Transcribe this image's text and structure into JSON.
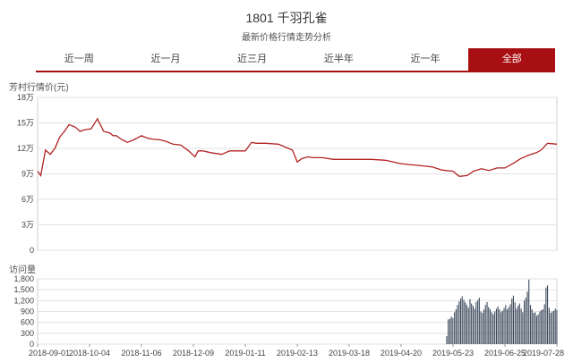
{
  "header": {
    "title": "1801 千羽孔雀",
    "subtitle": "最新价格行情走势分析"
  },
  "tabs": [
    {
      "label": "近一周",
      "active": false
    },
    {
      "label": "近一月",
      "active": false
    },
    {
      "label": "近三月",
      "active": false
    },
    {
      "label": "近半年",
      "active": false
    },
    {
      "label": "近一年",
      "active": false
    },
    {
      "label": "全部",
      "active": true
    }
  ],
  "colors": {
    "accent": "#a80f12",
    "price_line": "#b22222",
    "volume_bar": "#3d4a5c"
  },
  "chart_data": [
    {
      "type": "line",
      "ylabel": "芳村行情价(元)",
      "ylim": [
        0,
        180000
      ],
      "y_ticks": [
        0,
        30000,
        60000,
        90000,
        120000,
        150000,
        180000
      ],
      "y_tick_labels": [
        "0",
        "3万",
        "6万",
        "9万",
        "12万",
        "15万",
        "18万"
      ],
      "xlim": [
        "2018-09-01",
        "2019-07-28"
      ],
      "grid": true,
      "series": [
        {
          "x": [
            "2018-09-01",
            "2018-09-03",
            "2018-09-06",
            "2018-09-09",
            "2018-09-12",
            "2018-09-15",
            "2018-09-18",
            "2018-09-21",
            "2018-09-25",
            "2018-09-28",
            "2018-10-01",
            "2018-10-05",
            "2018-10-09",
            "2018-10-13",
            "2018-10-17",
            "2018-10-19",
            "2018-10-21",
            "2018-10-24",
            "2018-10-28",
            "2018-11-01",
            "2018-11-06",
            "2018-11-10",
            "2018-11-13",
            "2018-11-18",
            "2018-11-22",
            "2018-11-26",
            "2018-12-01",
            "2018-12-06",
            "2018-12-10",
            "2018-12-12",
            "2018-12-15",
            "2018-12-20",
            "2018-12-27",
            "2019-01-01",
            "2019-01-04",
            "2019-01-07",
            "2019-01-11",
            "2019-01-15",
            "2019-01-18",
            "2019-01-20",
            "2019-01-24",
            "2019-02-01",
            "2019-02-10",
            "2019-02-13",
            "2019-02-16",
            "2019-02-20",
            "2019-02-23",
            "2019-03-01",
            "2019-03-08",
            "2019-03-18",
            "2019-03-25",
            "2019-04-01",
            "2019-04-10",
            "2019-04-20",
            "2019-04-25",
            "2019-05-01",
            "2019-05-10",
            "2019-05-15",
            "2019-05-18",
            "2019-05-23",
            "2019-05-27",
            "2019-06-01",
            "2019-06-05",
            "2019-06-10",
            "2019-06-15",
            "2019-06-20",
            "2019-06-25",
            "2019-06-30",
            "2019-07-05",
            "2019-07-10",
            "2019-07-15",
            "2019-07-18",
            "2019-07-22",
            "2019-07-28"
          ],
          "y": [
            93000,
            88000,
            118000,
            113000,
            120000,
            133000,
            140000,
            148000,
            145000,
            140000,
            142000,
            143000,
            155000,
            140000,
            138000,
            135000,
            135000,
            131000,
            127000,
            130000,
            135000,
            132000,
            131000,
            130000,
            128000,
            125000,
            124000,
            117000,
            110000,
            117000,
            117000,
            115000,
            113000,
            117000,
            117000,
            117000,
            117000,
            127000,
            126000,
            126000,
            126000,
            125000,
            118000,
            104000,
            108000,
            110000,
            109000,
            109000,
            107000,
            107000,
            107000,
            107000,
            106000,
            102000,
            101000,
            100000,
            98000,
            95000,
            94000,
            93000,
            87000,
            88000,
            93000,
            96000,
            94000,
            97000,
            97000,
            102000,
            108000,
            112000,
            115000,
            118000,
            126000,
            125000
          ]
        }
      ]
    },
    {
      "type": "bar",
      "ylabel": "访问量",
      "ylim": [
        0,
        1800
      ],
      "y_ticks": [
        0,
        300,
        600,
        900,
        1200,
        1500,
        1800
      ],
      "y_tick_labels": [
        "0",
        "300",
        "600",
        "900",
        "1,200",
        "1,500",
        "1,800"
      ],
      "x_tick_labels": [
        "2018-09-01",
        "2018-10-04",
        "2018-11-06",
        "2018-12-09",
        "2019-01-11",
        "2019-02-13",
        "2019-03-18",
        "2019-04-20",
        "2019-05-23",
        "2019-06-25",
        "2019-07-28"
      ],
      "x_start": "2019-05-19",
      "x_end": "2019-07-28",
      "values": [
        220,
        680,
        700,
        760,
        720,
        880,
        960,
        1080,
        1180,
        1260,
        1320,
        1220,
        1150,
        1080,
        1000,
        1240,
        1120,
        1060,
        980,
        1160,
        1220,
        1280,
        900,
        860,
        960,
        1080,
        1160,
        1020,
        960,
        880,
        820,
        900,
        980,
        1040,
        960,
        880,
        920,
        1000,
        1080,
        960,
        1020,
        1100,
        1260,
        1340,
        1150,
        980,
        1060,
        1120,
        980,
        880,
        1200,
        1280,
        1450,
        1780,
        1080,
        960,
        860,
        880,
        780,
        820,
        900,
        940,
        960,
        1100,
        1560,
        1620,
        1000,
        860,
        900,
        920,
        980,
        940
      ]
    }
  ]
}
